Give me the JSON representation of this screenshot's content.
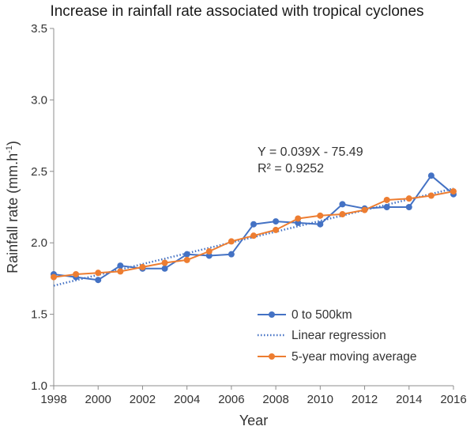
{
  "chart_data": {
    "type": "line",
    "title": "Increase in rainfall rate associated with tropical cyclones",
    "xlabel": "Year",
    "ylabel": "Rainfall rate (mm.h",
    "ylabel_sup": "-1",
    "ylabel_close": ")",
    "xlim": [
      1998,
      2016
    ],
    "ylim": [
      1.0,
      3.5
    ],
    "xticks": [
      "1998",
      "2000",
      "2002",
      "2004",
      "2006",
      "2008",
      "2010",
      "2012",
      "2014",
      "2016"
    ],
    "yticks": [
      "1.0",
      "1.5",
      "2.0",
      "2.5",
      "3.0",
      "3.5"
    ],
    "grid": false,
    "legend_position": "bottom-right",
    "annotation": {
      "equation": "Y = 0.039X - 75.49",
      "r_squared": "R² = 0.9252"
    },
    "series": [
      {
        "name": "0 to 500km",
        "style": "line-markers",
        "color": "#4472c4",
        "x": [
          1998,
          1999,
          2000,
          2001,
          2002,
          2003,
          2004,
          2005,
          2006,
          2007,
          2008,
          2009,
          2010,
          2011,
          2012,
          2013,
          2014,
          2015,
          2016
        ],
        "values": [
          1.78,
          1.76,
          1.74,
          1.84,
          1.82,
          1.82,
          1.92,
          1.91,
          1.92,
          2.13,
          2.15,
          2.14,
          2.13,
          2.27,
          2.24,
          2.25,
          2.25,
          2.47,
          2.34
        ]
      },
      {
        "name": "Linear regression",
        "style": "dotted",
        "color": "#4472c4",
        "x": [
          1998,
          2016
        ],
        "values": [
          1.7,
          2.38
        ]
      },
      {
        "name": "5-year moving average",
        "style": "line-markers",
        "color": "#ed7d31",
        "x": [
          1998,
          1999,
          2000,
          2001,
          2002,
          2003,
          2004,
          2005,
          2006,
          2007,
          2008,
          2009,
          2010,
          2011,
          2012,
          2013,
          2014,
          2015,
          2016
        ],
        "values": [
          1.76,
          1.78,
          1.79,
          1.8,
          1.83,
          1.86,
          1.88,
          1.94,
          2.01,
          2.05,
          2.09,
          2.17,
          2.19,
          2.2,
          2.23,
          2.3,
          2.31,
          2.33,
          2.36
        ]
      }
    ]
  }
}
